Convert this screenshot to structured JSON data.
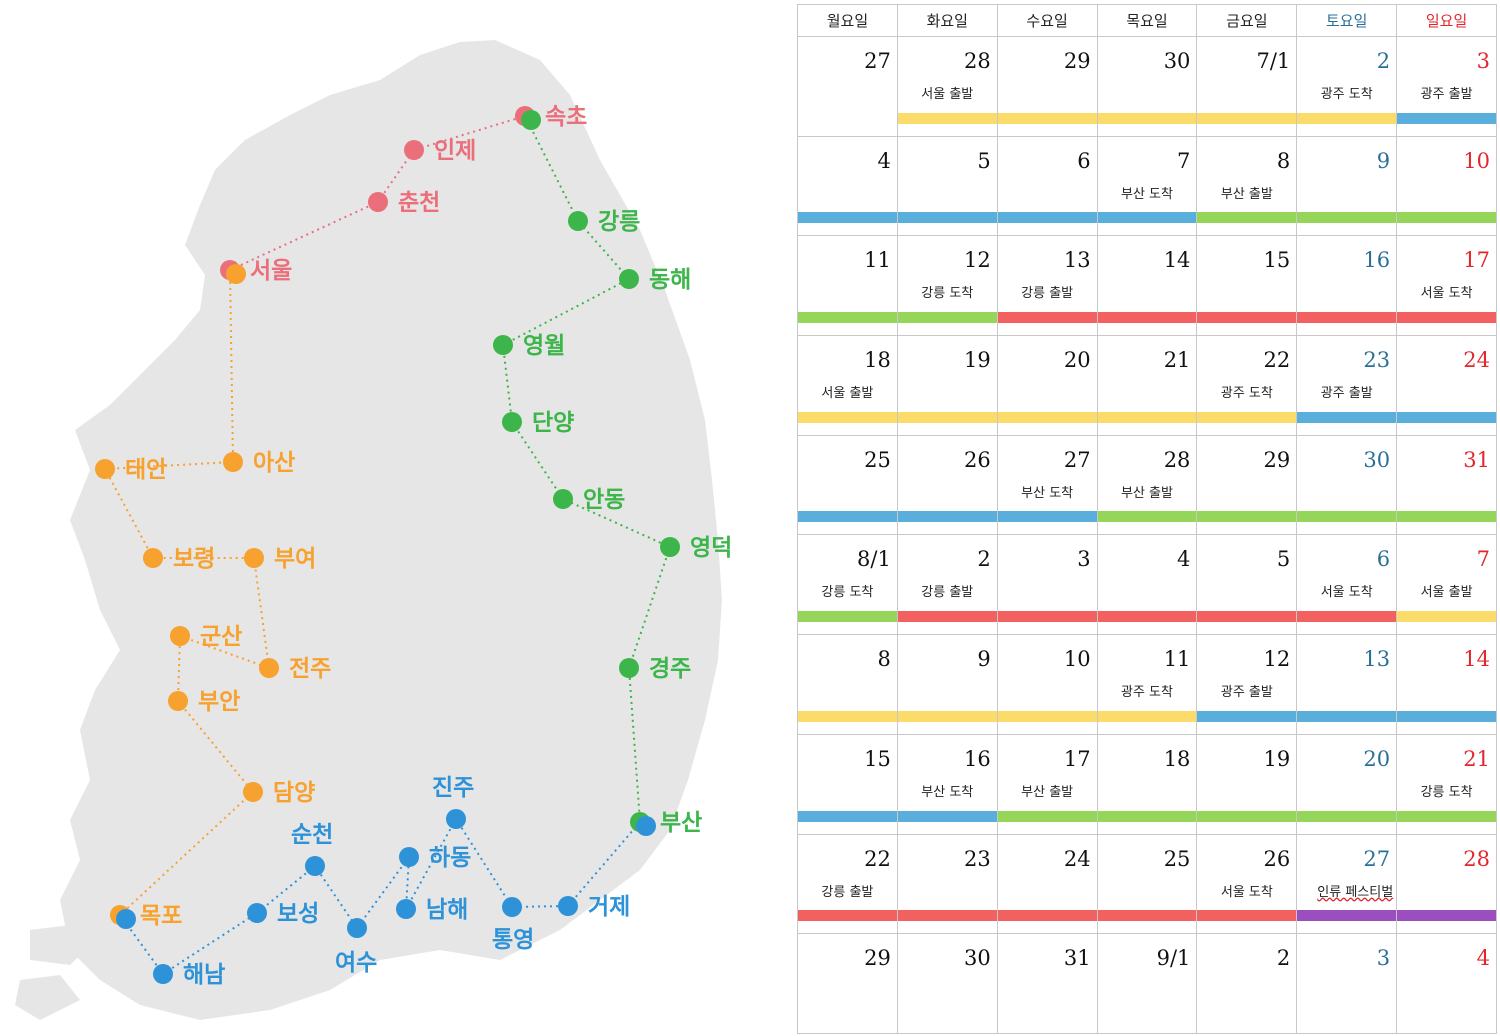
{
  "map": {
    "colors": {
      "land": "#e6e6e6",
      "red": "#ea6f7b",
      "green": "#3cb54a",
      "orange": "#f7a12f",
      "blue": "#2e92d9"
    },
    "routes": [
      {
        "name": "red-route",
        "color": "red",
        "cities": [
          {
            "id": "seoul",
            "label": "서울"
          },
          {
            "id": "chuncheon",
            "label": "춘천"
          },
          {
            "id": "inje",
            "label": "인제"
          },
          {
            "id": "sokcho",
            "label": "속초"
          }
        ]
      },
      {
        "name": "green-route",
        "color": "green",
        "cities": [
          {
            "id": "sokcho",
            "label": ""
          },
          {
            "id": "gangneung",
            "label": "강릉"
          },
          {
            "id": "donghae",
            "label": "동해"
          },
          {
            "id": "yeongwol",
            "label": "영월"
          },
          {
            "id": "danyang",
            "label": "단양"
          },
          {
            "id": "andong",
            "label": "안동"
          },
          {
            "id": "yeongdeok",
            "label": "영덕"
          },
          {
            "id": "gyeongju",
            "label": "경주"
          },
          {
            "id": "busan",
            "label": "부산"
          }
        ]
      },
      {
        "name": "orange-route",
        "color": "orange",
        "cities": [
          {
            "id": "seoul",
            "label": ""
          },
          {
            "id": "asan",
            "label": "아산"
          },
          {
            "id": "taean",
            "label": "태안"
          },
          {
            "id": "boryeong",
            "label": "보령"
          },
          {
            "id": "buyeo",
            "label": "부여"
          },
          {
            "id": "jeonju",
            "label": "전주"
          },
          {
            "id": "gunsan",
            "label": "군산"
          },
          {
            "id": "buan",
            "label": "부안"
          },
          {
            "id": "damyang",
            "label": "담양"
          },
          {
            "id": "mokpo",
            "label": "목포"
          }
        ]
      },
      {
        "name": "blue-route",
        "color": "blue",
        "cities": [
          {
            "id": "mokpo",
            "label": ""
          },
          {
            "id": "haenam",
            "label": "해남"
          },
          {
            "id": "boseong",
            "label": "보성"
          },
          {
            "id": "suncheon",
            "label": "순천"
          },
          {
            "id": "yeosu",
            "label": "여수"
          },
          {
            "id": "hadong",
            "label": "하동"
          },
          {
            "id": "namhae",
            "label": "남해"
          },
          {
            "id": "jinju",
            "label": "진주"
          },
          {
            "id": "tongyeong",
            "label": "통영"
          },
          {
            "id": "geoje",
            "label": "거제"
          },
          {
            "id": "busan",
            "label": ""
          }
        ]
      }
    ]
  },
  "calendar": {
    "headers": [
      {
        "label": "월요일",
        "kind": "weekday"
      },
      {
        "label": "화요일",
        "kind": "weekday"
      },
      {
        "label": "수요일",
        "kind": "weekday"
      },
      {
        "label": "목요일",
        "kind": "weekday"
      },
      {
        "label": "금요일",
        "kind": "weekday"
      },
      {
        "label": "토요일",
        "kind": "sat"
      },
      {
        "label": "일요일",
        "kind": "sun"
      }
    ],
    "colors": {
      "yellow": "#fbdc6b",
      "blue": "#5aaedb",
      "green": "#95d55a",
      "red": "#f2615f",
      "purple": "#9b4fbe"
    },
    "weeks": [
      {
        "days": [
          {
            "num": "27",
            "note": "",
            "bar": ""
          },
          {
            "num": "28",
            "note": "서울 출발",
            "bar": "yellow"
          },
          {
            "num": "29",
            "note": "",
            "bar": "yellow"
          },
          {
            "num": "30",
            "note": "",
            "bar": "yellow"
          },
          {
            "num": "7/1",
            "note": "",
            "bar": "yellow"
          },
          {
            "num": "2",
            "note": "광주 도착",
            "bar": "yellow"
          },
          {
            "num": "3",
            "note": "광주 출발",
            "bar": "blue"
          }
        ]
      },
      {
        "days": [
          {
            "num": "4",
            "note": "",
            "bar": "blue"
          },
          {
            "num": "5",
            "note": "",
            "bar": "blue"
          },
          {
            "num": "6",
            "note": "",
            "bar": "blue"
          },
          {
            "num": "7",
            "note": "부산 도착",
            "bar": "blue"
          },
          {
            "num": "8",
            "note": "부산 출발",
            "bar": "green"
          },
          {
            "num": "9",
            "note": "",
            "bar": "green"
          },
          {
            "num": "10",
            "note": "",
            "bar": "green"
          }
        ]
      },
      {
        "days": [
          {
            "num": "11",
            "note": "",
            "bar": "green"
          },
          {
            "num": "12",
            "note": "강릉 도착",
            "bar": "green"
          },
          {
            "num": "13",
            "note": "강릉 출발",
            "bar": "red"
          },
          {
            "num": "14",
            "note": "",
            "bar": "red"
          },
          {
            "num": "15",
            "note": "",
            "bar": "red"
          },
          {
            "num": "16",
            "note": "",
            "bar": "red"
          },
          {
            "num": "17",
            "note": "서울 도착",
            "bar": "red"
          }
        ]
      },
      {
        "days": [
          {
            "num": "18",
            "note": "서울 출발",
            "bar": "yellow"
          },
          {
            "num": "19",
            "note": "",
            "bar": "yellow"
          },
          {
            "num": "20",
            "note": "",
            "bar": "yellow"
          },
          {
            "num": "21",
            "note": "",
            "bar": "yellow"
          },
          {
            "num": "22",
            "note": "광주 도착",
            "bar": "yellow"
          },
          {
            "num": "23",
            "note": "광주 출발",
            "bar": "blue"
          },
          {
            "num": "24",
            "note": "",
            "bar": "blue"
          }
        ]
      },
      {
        "days": [
          {
            "num": "25",
            "note": "",
            "bar": "blue"
          },
          {
            "num": "26",
            "note": "",
            "bar": "blue"
          },
          {
            "num": "27",
            "note": "부산 도착",
            "bar": "blue"
          },
          {
            "num": "28",
            "note": "부산 출발",
            "bar": "green"
          },
          {
            "num": "29",
            "note": "",
            "bar": "green"
          },
          {
            "num": "30",
            "note": "",
            "bar": "green"
          },
          {
            "num": "31",
            "note": "",
            "bar": "green"
          }
        ]
      },
      {
        "days": [
          {
            "num": "8/1",
            "note": "강릉 도착",
            "bar": "green"
          },
          {
            "num": "2",
            "note": "강릉 출발",
            "bar": "red"
          },
          {
            "num": "3",
            "note": "",
            "bar": "red"
          },
          {
            "num": "4",
            "note": "",
            "bar": "red"
          },
          {
            "num": "5",
            "note": "",
            "bar": "red"
          },
          {
            "num": "6",
            "note": "서울 도착",
            "bar": "red"
          },
          {
            "num": "7",
            "note": "서울 출발",
            "bar": "yellow"
          }
        ]
      },
      {
        "days": [
          {
            "num": "8",
            "note": "",
            "bar": "yellow"
          },
          {
            "num": "9",
            "note": "",
            "bar": "yellow"
          },
          {
            "num": "10",
            "note": "",
            "bar": "yellow"
          },
          {
            "num": "11",
            "note": "광주 도착",
            "bar": "yellow"
          },
          {
            "num": "12",
            "note": "광주 출발",
            "bar": "blue"
          },
          {
            "num": "13",
            "note": "",
            "bar": "blue"
          },
          {
            "num": "14",
            "note": "",
            "bar": "blue"
          }
        ]
      },
      {
        "days": [
          {
            "num": "15",
            "note": "",
            "bar": "blue"
          },
          {
            "num": "16",
            "note": "부산 도착",
            "bar": "blue"
          },
          {
            "num": "17",
            "note": "부산 출발",
            "bar": "green"
          },
          {
            "num": "18",
            "note": "",
            "bar": "green"
          },
          {
            "num": "19",
            "note": "",
            "bar": "green"
          },
          {
            "num": "20",
            "note": "",
            "bar": "green"
          },
          {
            "num": "21",
            "note": "강릉 도착",
            "bar": "green"
          }
        ]
      },
      {
        "days": [
          {
            "num": "22",
            "note": "강릉 출발",
            "bar": "red"
          },
          {
            "num": "23",
            "note": "",
            "bar": "red"
          },
          {
            "num": "24",
            "note": "",
            "bar": "red"
          },
          {
            "num": "25",
            "note": "",
            "bar": "red"
          },
          {
            "num": "26",
            "note": "서울 도착",
            "bar": "red"
          },
          {
            "num": "27",
            "note": "",
            "bar": "purple"
          },
          {
            "num": "28",
            "note": "",
            "bar": "purple"
          }
        ],
        "festival": "인류 페스티벌"
      },
      {
        "days": [
          {
            "num": "29",
            "note": "",
            "bar": ""
          },
          {
            "num": "30",
            "note": "",
            "bar": ""
          },
          {
            "num": "31",
            "note": "",
            "bar": ""
          },
          {
            "num": "9/1",
            "note": "",
            "bar": ""
          },
          {
            "num": "2",
            "note": "",
            "bar": ""
          },
          {
            "num": "3",
            "note": "",
            "bar": ""
          },
          {
            "num": "4",
            "note": "",
            "bar": ""
          }
        ]
      }
    ]
  }
}
